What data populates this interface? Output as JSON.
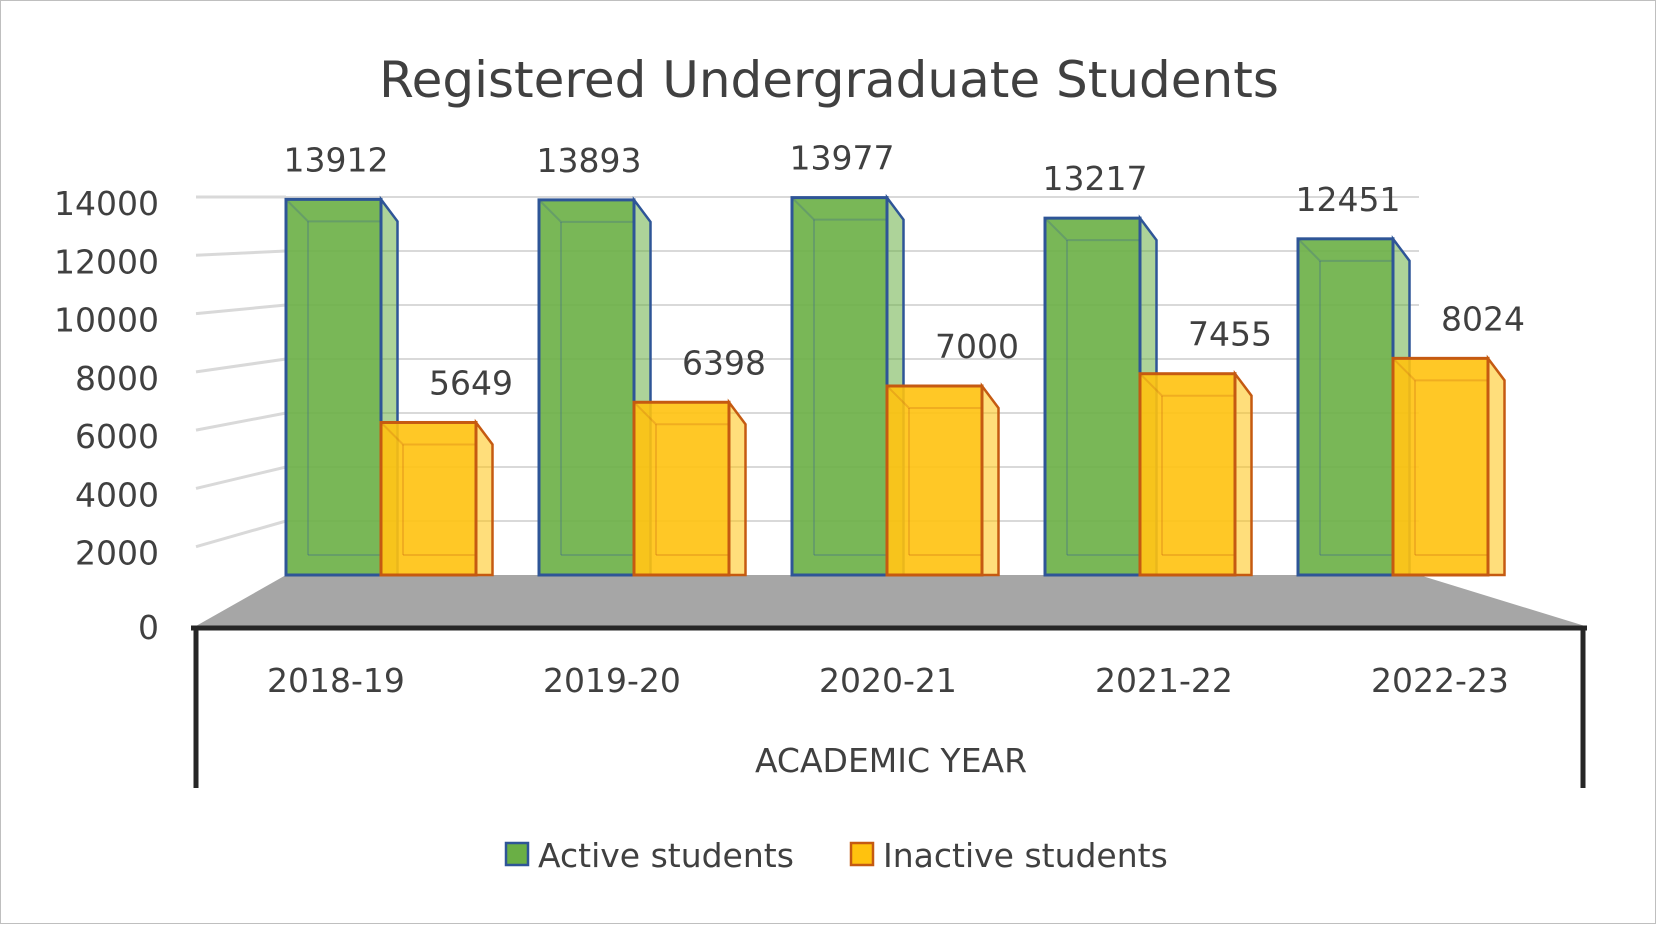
{
  "chart_data": {
    "type": "bar",
    "title": "Registered Undergraduate Students",
    "xlabel": "ACADEMIC YEAR",
    "ylabel": "",
    "categories": [
      "2018-19",
      "2019-20",
      "2020-21",
      "2021-22",
      "2022-23"
    ],
    "series": [
      {
        "name": "Active students",
        "values": [
          13912,
          13893,
          13977,
          13217,
          12451
        ],
        "color": "#6aaf45"
      },
      {
        "name": "Inactive students",
        "values": [
          5649,
          6398,
          7000,
          7455,
          8024
        ],
        "color": "#ffc20e"
      }
    ],
    "ylim": [
      0,
      14000
    ],
    "yticks": [
      "0",
      "2000",
      "4000",
      "6000",
      "8000",
      "10000",
      "12000",
      "14000"
    ],
    "grid": true,
    "legend": "bottom",
    "style": "3d-clustered",
    "colors": {
      "active_fill": "#6aaf45",
      "active_edge": "#2e5597",
      "inactive_fill": "#ffc20e",
      "inactive_edge": "#c55a11",
      "floor": "#a6a6a6",
      "gridline": "#d9d9d9",
      "text": "#404040"
    }
  }
}
